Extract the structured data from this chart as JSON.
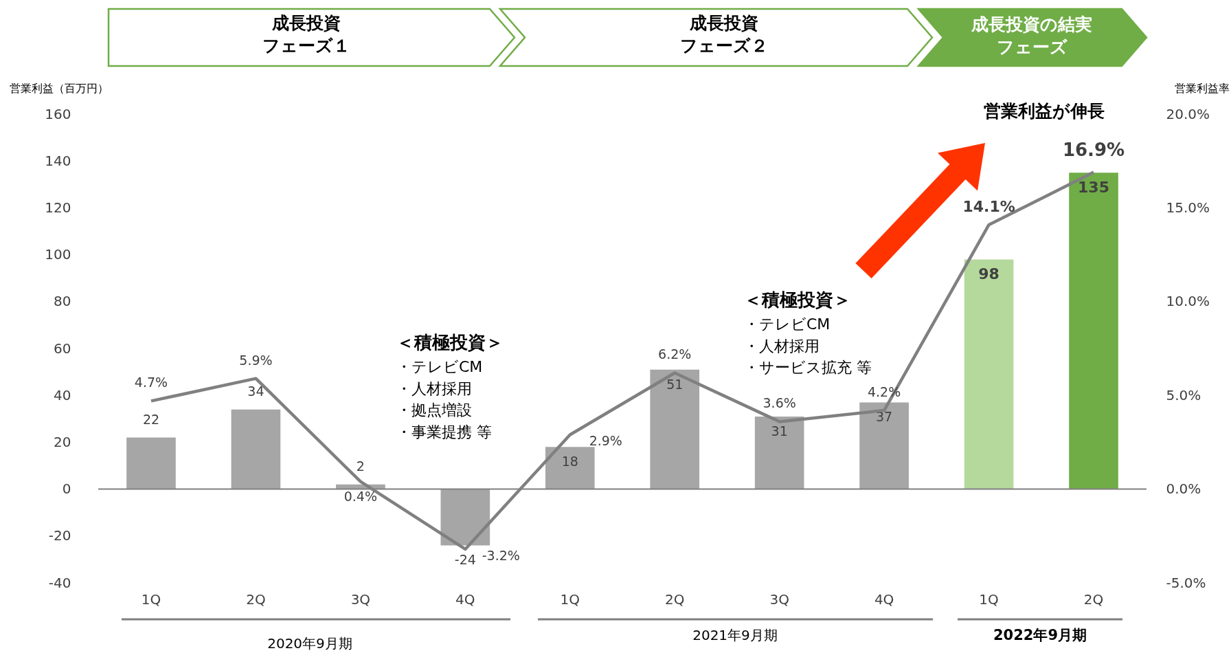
{
  "chart_data": {
    "type": "bar",
    "categories": [
      "1Q",
      "2Q",
      "3Q",
      "4Q",
      "1Q",
      "2Q",
      "3Q",
      "4Q",
      "1Q",
      "2Q"
    ],
    "ylabel": "営業利益（百万円）",
    "y2label": "営業利益率",
    "ylim": [
      -40,
      160
    ],
    "yticks": [
      -40,
      -20,
      0,
      20,
      40,
      60,
      80,
      100,
      120,
      140,
      160
    ],
    "y2lim": [
      -5,
      20
    ],
    "y2ticks": [
      {
        "value": -5,
        "label": "-5.0%"
      },
      {
        "value": 0,
        "label": "0.0%"
      },
      {
        "value": 5,
        "label": "5.0%"
      },
      {
        "value": 10,
        "label": "10.0%"
      },
      {
        "value": 15,
        "label": "15.0%"
      },
      {
        "value": 20,
        "label": "20.0%"
      }
    ],
    "series": [
      {
        "colors": [
          "#a6a6a6",
          "#a6a6a6",
          "#a6a6a6",
          "#a6a6a6",
          "#a6a6a6",
          "#a6a6a6",
          "#a6a6a6",
          "#a6a6a6",
          "#b5d99c",
          "#70ad47"
        ],
        "values": [
          22,
          34,
          2,
          -24,
          18,
          51,
          31,
          37,
          98,
          135
        ],
        "value_labels": [
          "22",
          "34",
          "2",
          "-24",
          "18",
          "51",
          "31",
          "37",
          "98",
          "135"
        ]
      },
      {
        "type": "line",
        "axis": "y2",
        "color": "#808080",
        "values": [
          4.7,
          5.9,
          0.4,
          -3.2,
          2.9,
          6.2,
          3.6,
          4.2,
          14.1,
          16.9
        ],
        "value_labels": [
          "4.7%",
          "5.9%",
          "0.4%",
          "-3.2%",
          "2.9%",
          "6.2%",
          "3.6%",
          "4.2%",
          "14.1%",
          "16.9%"
        ]
      }
    ],
    "ref_lines": [
      {
        "axis": "y",
        "value": 0,
        "color": "#808080"
      }
    ],
    "annotations": [
      "成長投資フェーズ１",
      "成長投資フェーズ２",
      "成長投資の結実フェーズ",
      "営業利益が伸長",
      "＜積極投資＞・テレビCM・人材採用・拠点増設・事業提携 等",
      "＜積極投資＞・テレビCM・人材採用・サービス拡充 等",
      "2020年9月期",
      "2021年9月期",
      "2022年9月期"
    ]
  }
}
